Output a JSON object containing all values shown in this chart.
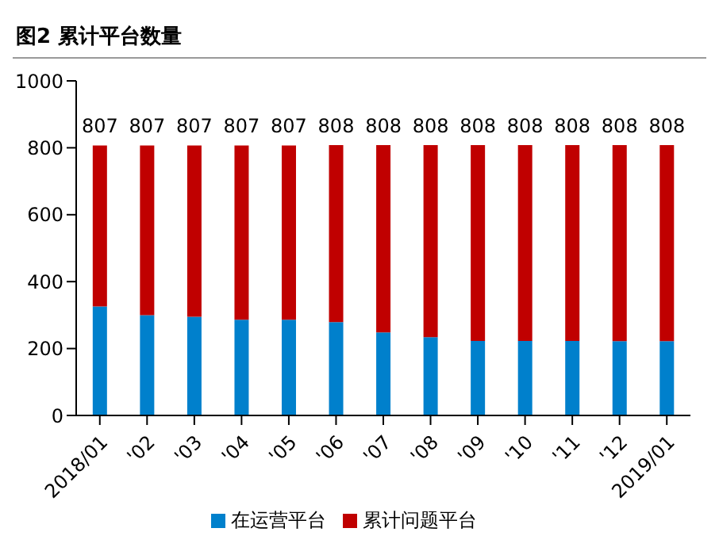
{
  "chart_data": {
    "type": "bar",
    "title": "图2  累计平台数量",
    "stacked": true,
    "categories": [
      "2018/01",
      "'02",
      "'03",
      "'04",
      "'05",
      "'06",
      "'07",
      "'08",
      "'09",
      "'10",
      "'11",
      "'12",
      "2019/01"
    ],
    "series": [
      {
        "name": "在运营平台",
        "color": "#0080cc",
        "values": [
          326,
          300,
          295,
          286,
          286,
          279,
          248,
          234,
          223,
          223,
          223,
          222,
          222
        ]
      },
      {
        "name": "累计问题平台",
        "color": "#c00000",
        "values": [
          481,
          507,
          512,
          521,
          521,
          529,
          560,
          574,
          585,
          585,
          585,
          586,
          586
        ]
      }
    ],
    "totals": [
      "807",
      "807",
      "807",
      "807",
      "807",
      "808",
      "808",
      "808",
      "808",
      "808",
      "808",
      "808",
      "808"
    ],
    "ylim": [
      0,
      1000
    ],
    "yticks": [
      0,
      200,
      400,
      600,
      800,
      1000
    ],
    "grid": false,
    "legend": "bottom"
  }
}
